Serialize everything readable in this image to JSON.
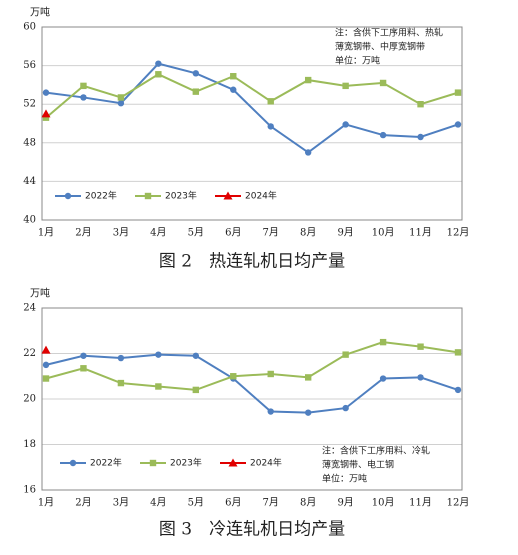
{
  "chart_data": [
    {
      "type": "line",
      "title": "图 2　热连轧机日均产量",
      "y_label": "万吨",
      "annotation": [
        "注：含供下工序用料、热轧",
        "薄宽钢带、中厚宽钢带",
        "单位：万吨"
      ],
      "categories": [
        "1月",
        "2月",
        "3月",
        "4月",
        "5月",
        "6月",
        "7月",
        "8月",
        "9月",
        "10月",
        "11月",
        "12月"
      ],
      "ylim": [
        40,
        60
      ],
      "yticks": [
        40,
        44,
        48,
        52,
        56,
        60
      ],
      "grid": true,
      "legend": "lower left",
      "series": [
        {
          "name": "2022年",
          "color": "#4f7fc0",
          "marker": "circle",
          "values": [
            53.2,
            52.7,
            52.1,
            56.2,
            55.2,
            53.5,
            49.7,
            47.0,
            49.9,
            48.8,
            48.6,
            49.9
          ]
        },
        {
          "name": "2023年",
          "color": "#9bbb59",
          "marker": "square",
          "values": [
            50.6,
            53.9,
            52.7,
            55.1,
            53.3,
            54.9,
            52.3,
            54.5,
            53.9,
            54.2,
            52.0,
            53.2
          ]
        },
        {
          "name": "2024年",
          "color": "#e00000",
          "marker": "triangle",
          "values": [
            51.0,
            null,
            null,
            null,
            null,
            null,
            null,
            null,
            null,
            null,
            null,
            null
          ]
        }
      ]
    },
    {
      "type": "line",
      "title": "图 3　冷连轧机日均产量",
      "y_label": "万吨",
      "annotation": [
        "注：含供下工序用料、冷轧",
        "薄宽钢带、电工钢",
        "单位：万吨"
      ],
      "categories": [
        "1月",
        "2月",
        "3月",
        "4月",
        "5月",
        "6月",
        "7月",
        "8月",
        "9月",
        "10月",
        "11月",
        "12月"
      ],
      "ylim": [
        16,
        24
      ],
      "yticks": [
        16,
        18,
        20,
        22,
        24
      ],
      "grid": true,
      "legend": "lower left",
      "series": [
        {
          "name": "2022年",
          "color": "#4f7fc0",
          "marker": "circle",
          "values": [
            21.5,
            21.9,
            21.8,
            21.95,
            21.9,
            20.9,
            19.45,
            19.4,
            19.6,
            20.9,
            20.95,
            20.4
          ]
        },
        {
          "name": "2023年",
          "color": "#9bbb59",
          "marker": "square",
          "values": [
            20.9,
            21.35,
            20.7,
            20.55,
            20.4,
            21.0,
            21.1,
            20.95,
            21.95,
            22.5,
            22.3,
            22.05
          ]
        },
        {
          "name": "2024年",
          "color": "#e00000",
          "marker": "triangle",
          "values": [
            22.15,
            null,
            null,
            null,
            null,
            null,
            null,
            null,
            null,
            null,
            null,
            null
          ]
        }
      ]
    }
  ]
}
